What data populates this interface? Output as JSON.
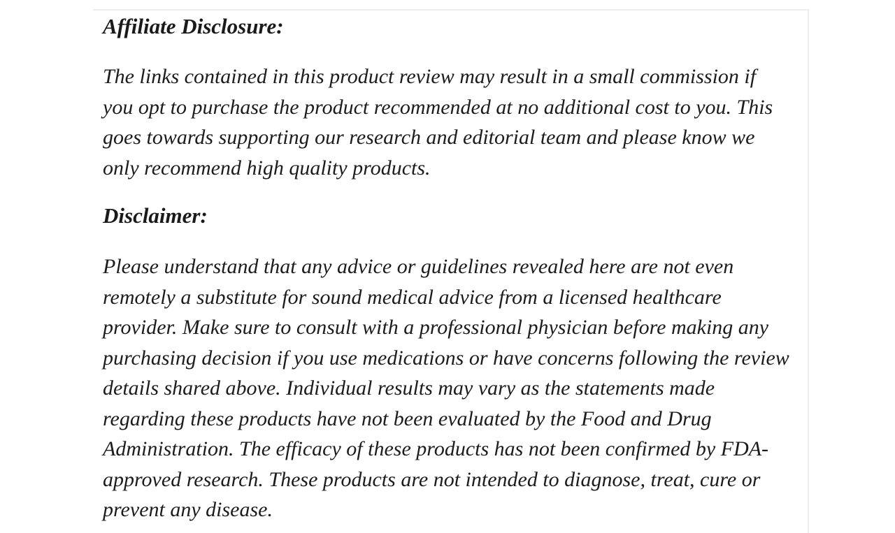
{
  "page": {
    "background_color": "#ffffff",
    "text_color": "#1c1c1c",
    "heading_color": "#1a1a1a",
    "border_color": "#ededed"
  },
  "content": {
    "sections": [
      {
        "heading": "Affiliate Disclosure:",
        "lines": [
          "The links contained in this product review may result in a small commission if",
          "you opt to purchase the product recommended at no additional cost to you. This",
          "goes towards supporting our research and editorial team and please know we",
          "only recommend high quality products."
        ]
      },
      {
        "heading": "Disclaimer:",
        "lines": [
          "Please understand that any advice or guidelines revealed here are not even",
          "remotely a substitute for sound medical advice from a licensed healthcare",
          "provider. Make sure to consult with a professional physician before making any",
          "purchasing decision if you use medications or have concerns following the review",
          "details shared above. Individual results may vary as the statements made",
          "regarding these products have not been evaluated by the Food and Drug",
          "Administration. The efficacy of these products has not been confirmed by FDA-",
          "approved research. These products are not intended to diagnose, treat, cure or",
          "prevent any disease."
        ]
      }
    ]
  }
}
